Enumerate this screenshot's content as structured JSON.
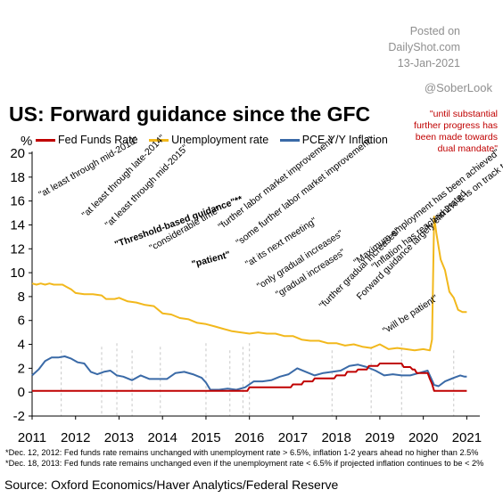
{
  "header": {
    "posted_lines": [
      "Posted on",
      "DailyShot.com",
      "13-Jan-2021"
    ],
    "handle": "@SoberLook",
    "title": "US: Forward guidance since the GFC",
    "top_note": "\"until substantial further progress has been made towards dual mandate\""
  },
  "colors": {
    "fed_funds": "#c00000",
    "unemployment": "#f2b81c",
    "pce": "#3a6aa7",
    "red_text": "#c00000",
    "grid": "#c8c8c8"
  },
  "chart_data": {
    "type": "line",
    "ylabel": "%",
    "ylim": [
      -2,
      20
    ],
    "yticks": [
      -2,
      0,
      2,
      4,
      6,
      8,
      10,
      12,
      14,
      16,
      18,
      20
    ],
    "xlim": [
      2011.0,
      2021.3
    ],
    "xticks": [
      "2011",
      "2012",
      "2013",
      "2014",
      "2015",
      "2016",
      "2017",
      "2018",
      "2019",
      "2020",
      "2021"
    ],
    "grid": "vertical dashed lines at annotation dates",
    "legend": "top-left",
    "series": [
      {
        "name": "Fed Funds Rate",
        "color": "#c00000",
        "x": [
          2011.0,
          2015.95,
          2016.0,
          2016.95,
          2017.0,
          2017.2,
          2017.25,
          2017.45,
          2017.5,
          2017.95,
          2018.0,
          2018.2,
          2018.25,
          2018.45,
          2018.5,
          2018.7,
          2018.75,
          2018.95,
          2019.0,
          2019.5,
          2019.55,
          2019.7,
          2019.75,
          2019.8,
          2019.85,
          2020.1,
          2020.15,
          2020.2,
          2020.25,
          2021.0
        ],
        "y": [
          0.1,
          0.1,
          0.4,
          0.4,
          0.65,
          0.65,
          0.9,
          0.9,
          1.15,
          1.15,
          1.4,
          1.4,
          1.7,
          1.7,
          1.9,
          1.9,
          2.2,
          2.2,
          2.4,
          2.4,
          2.1,
          2.1,
          1.9,
          1.9,
          1.6,
          1.6,
          1.1,
          0.7,
          0.1,
          0.1
        ]
      },
      {
        "name": "Unemployment rate",
        "color": "#f2b81c",
        "x": [
          2011.0,
          2011.1,
          2011.2,
          2011.3,
          2011.4,
          2011.5,
          2011.6,
          2011.7,
          2011.8,
          2011.9,
          2012.0,
          2012.2,
          2012.4,
          2012.6,
          2012.7,
          2012.9,
          2013.0,
          2013.2,
          2013.4,
          2013.6,
          2013.8,
          2014.0,
          2014.2,
          2014.4,
          2014.6,
          2014.8,
          2015.0,
          2015.2,
          2015.4,
          2015.6,
          2015.8,
          2016.0,
          2016.2,
          2016.4,
          2016.6,
          2016.8,
          2017.0,
          2017.2,
          2017.4,
          2017.6,
          2017.8,
          2018.0,
          2018.2,
          2018.4,
          2018.6,
          2018.8,
          2019.0,
          2019.2,
          2019.4,
          2019.6,
          2019.8,
          2020.0,
          2020.15,
          2020.2,
          2020.25,
          2020.3,
          2020.4,
          2020.5,
          2020.6,
          2020.7,
          2020.8,
          2020.9,
          2021.0
        ],
        "y": [
          9.1,
          9.0,
          9.1,
          9.0,
          9.1,
          9.0,
          9.0,
          9.0,
          8.8,
          8.6,
          8.3,
          8.2,
          8.2,
          8.1,
          7.8,
          7.8,
          7.9,
          7.6,
          7.5,
          7.3,
          7.2,
          6.6,
          6.5,
          6.2,
          6.1,
          5.8,
          5.7,
          5.5,
          5.3,
          5.1,
          5.0,
          4.9,
          5.0,
          4.9,
          4.9,
          4.7,
          4.7,
          4.4,
          4.3,
          4.3,
          4.1,
          4.1,
          3.9,
          4.0,
          3.8,
          3.7,
          4.0,
          3.6,
          3.7,
          3.6,
          3.5,
          3.6,
          3.5,
          4.4,
          14.7,
          13.3,
          11.1,
          10.2,
          8.4,
          7.9,
          6.9,
          6.7,
          6.7
        ]
      },
      {
        "name": "PCE Y/Y Inflation",
        "color": "#3a6aa7",
        "x": [
          2011.0,
          2011.15,
          2011.3,
          2011.45,
          2011.6,
          2011.75,
          2011.9,
          2012.05,
          2012.2,
          2012.35,
          2012.5,
          2012.65,
          2012.8,
          2012.95,
          2013.1,
          2013.3,
          2013.5,
          2013.7,
          2013.9,
          2014.1,
          2014.3,
          2014.5,
          2014.7,
          2014.9,
          2015.0,
          2015.1,
          2015.3,
          2015.5,
          2015.7,
          2015.9,
          2016.1,
          2016.3,
          2016.5,
          2016.7,
          2016.9,
          2017.1,
          2017.3,
          2017.5,
          2017.7,
          2017.9,
          2018.1,
          2018.3,
          2018.5,
          2018.7,
          2018.9,
          2019.1,
          2019.3,
          2019.5,
          2019.7,
          2019.9,
          2020.1,
          2020.25,
          2020.35,
          2020.5,
          2020.7,
          2020.85,
          2020.95,
          2021.0
        ],
        "y": [
          1.4,
          1.9,
          2.6,
          2.9,
          2.9,
          3.0,
          2.8,
          2.5,
          2.4,
          1.7,
          1.5,
          1.7,
          1.8,
          1.4,
          1.3,
          1.0,
          1.4,
          1.1,
          1.1,
          1.1,
          1.6,
          1.7,
          1.5,
          1.2,
          0.8,
          0.2,
          0.2,
          0.3,
          0.2,
          0.4,
          0.9,
          0.9,
          1.0,
          1.3,
          1.5,
          2.0,
          1.7,
          1.4,
          1.6,
          1.7,
          1.8,
          2.2,
          2.3,
          2.1,
          1.8,
          1.4,
          1.5,
          1.4,
          1.4,
          1.6,
          1.8,
          0.6,
          0.5,
          0.9,
          1.2,
          1.4,
          1.3,
          1.3
        ]
      }
    ],
    "annotation_dates": [
      2011.67,
      2012.6,
      2012.95,
      2013.3,
      2013.95,
      2015.0,
      2015.55,
      2015.85,
      2016.0,
      2017.9,
      2018.8,
      2019.5,
      2020.7
    ]
  },
  "annotations": [
    "\"at least through mid-2013\"",
    "\"at least through late-2014\"",
    "\"at least through mid-2015\"",
    "\"Threshold-based guidance\"**",
    "\"considerable time\"",
    "\"patient\"",
    "\"further labor market improvement\"",
    "\"some further labor market improvement\"",
    "\"at its next meeting\"",
    "\"only gradual increases\"",
    "\"gradual increases\"",
    "\"further gradual increases\"",
    "Forward guidance largely eliminated",
    "\"will be patient\"",
    "\"Maximum employment has been achieved\"",
    "\"Inflation has reached 2% & is on track to moderately exceed 2% for some time\""
  ],
  "footnotes": [
    "*Dec. 12, 2012: Fed funds rate remains unchanged with unemployment  rate > 6.5%, inflation 1-2 years ahead no higher than 2.5%",
    "*Dec. 18, 2013: Fed funds rate remains unchanged even if the unemployment  rate < 6.5% if projected inflation continues to be < 2%"
  ],
  "source": "Source: Oxford Economics/Haver Analytics/Federal Reserve"
}
